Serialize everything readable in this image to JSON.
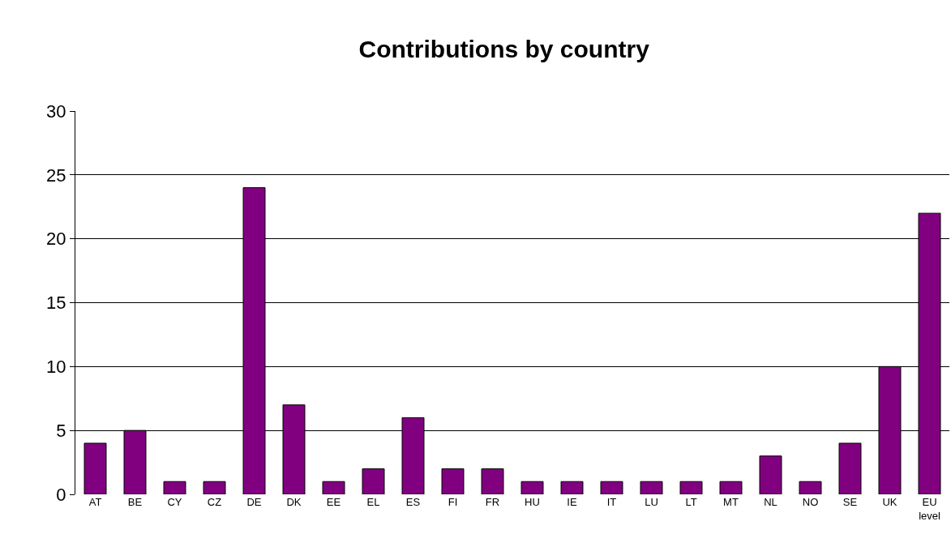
{
  "chart_data": {
    "type": "bar",
    "title": "Contributions by country",
    "categories": [
      "AT",
      "BE",
      "CY",
      "CZ",
      "DE",
      "DK",
      "EE",
      "EL",
      "ES",
      "FI",
      "FR",
      "HU",
      "IE",
      "IT",
      "LU",
      "LT",
      "MT",
      "NL",
      "NO",
      "SE",
      "UK",
      "EU level"
    ],
    "values": [
      4,
      5,
      1,
      1,
      24,
      7,
      1,
      2,
      6,
      2,
      2,
      1,
      1,
      1,
      1,
      1,
      1,
      3,
      1,
      4,
      10,
      22
    ],
    "color": "#800080",
    "ylim": [
      0,
      30
    ],
    "yticks": [
      0,
      5,
      10,
      15,
      20,
      25,
      30
    ],
    "grid": "y"
  }
}
